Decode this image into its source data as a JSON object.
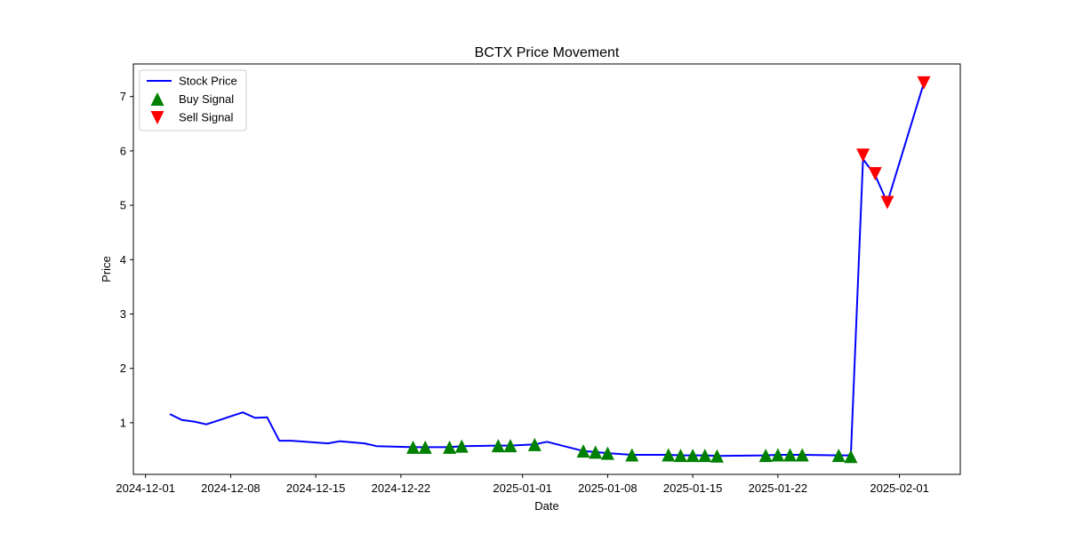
{
  "chart_data": {
    "type": "line",
    "title": "BCTX Price Movement",
    "xlabel": "Date",
    "ylabel": "Price",
    "ylim": [
      0.05,
      7.6
    ],
    "xlim": [
      "2024-11-30",
      "2025-02-06"
    ],
    "grid": false,
    "legend_position": "top-left",
    "x_ticks": [
      "2024-12-01",
      "2024-12-08",
      "2024-12-15",
      "2024-12-22",
      "2025-01-01",
      "2025-01-08",
      "2025-01-15",
      "2025-01-22",
      "2025-02-01"
    ],
    "y_ticks": [
      1,
      2,
      3,
      4,
      5,
      6,
      7
    ],
    "series": [
      {
        "name": "Stock Price",
        "color": "#0000ff",
        "points": [
          [
            "2024-12-03",
            1.16
          ],
          [
            "2024-12-04",
            1.05
          ],
          [
            "2024-12-05",
            1.02
          ],
          [
            "2024-12-06",
            0.97
          ],
          [
            "2024-12-09",
            1.19
          ],
          [
            "2024-12-10",
            1.09
          ],
          [
            "2024-12-11",
            1.1
          ],
          [
            "2024-12-12",
            0.67
          ],
          [
            "2024-12-13",
            0.67
          ],
          [
            "2024-12-16",
            0.62
          ],
          [
            "2024-12-17",
            0.66
          ],
          [
            "2024-12-19",
            0.62
          ],
          [
            "2024-12-20",
            0.57
          ],
          [
            "2024-12-23",
            0.55
          ],
          [
            "2024-12-24",
            0.55
          ],
          [
            "2024-12-26",
            0.55
          ],
          [
            "2024-12-27",
            0.57
          ],
          [
            "2024-12-30",
            0.58
          ],
          [
            "2024-12-31",
            0.58
          ],
          [
            "2025-01-02",
            0.6
          ],
          [
            "2025-01-03",
            0.65
          ],
          [
            "2025-01-06",
            0.48
          ],
          [
            "2025-01-07",
            0.46
          ],
          [
            "2025-01-08",
            0.44
          ],
          [
            "2025-01-10",
            0.41
          ],
          [
            "2025-01-13",
            0.41
          ],
          [
            "2025-01-14",
            0.4
          ],
          [
            "2025-01-15",
            0.4
          ],
          [
            "2025-01-16",
            0.4
          ],
          [
            "2025-01-17",
            0.39
          ],
          [
            "2025-01-21",
            0.4
          ],
          [
            "2025-01-22",
            0.41
          ],
          [
            "2025-01-23",
            0.41
          ],
          [
            "2025-01-24",
            0.41
          ],
          [
            "2025-01-27",
            0.4
          ],
          [
            "2025-01-28",
            0.4
          ],
          [
            "2025-01-29",
            5.85
          ],
          [
            "2025-01-30",
            5.55
          ],
          [
            "2025-01-31",
            5.05
          ],
          [
            "2025-02-03",
            7.25
          ]
        ]
      }
    ],
    "buy_signals": {
      "name": "Buy Signal",
      "color": "#008000",
      "points": [
        [
          "2024-12-23",
          0.55
        ],
        [
          "2024-12-24",
          0.55
        ],
        [
          "2024-12-26",
          0.55
        ],
        [
          "2024-12-27",
          0.57
        ],
        [
          "2024-12-30",
          0.58
        ],
        [
          "2024-12-31",
          0.58
        ],
        [
          "2025-01-02",
          0.6
        ],
        [
          "2025-01-06",
          0.48
        ],
        [
          "2025-01-07",
          0.46
        ],
        [
          "2025-01-08",
          0.44
        ],
        [
          "2025-01-10",
          0.41
        ],
        [
          "2025-01-13",
          0.41
        ],
        [
          "2025-01-14",
          0.4
        ],
        [
          "2025-01-15",
          0.4
        ],
        [
          "2025-01-16",
          0.4
        ],
        [
          "2025-01-17",
          0.39
        ],
        [
          "2025-01-21",
          0.4
        ],
        [
          "2025-01-22",
          0.41
        ],
        [
          "2025-01-23",
          0.41
        ],
        [
          "2025-01-24",
          0.41
        ],
        [
          "2025-01-27",
          0.4
        ],
        [
          "2025-01-28",
          0.38
        ]
      ]
    },
    "sell_signals": {
      "name": "Sell Signal",
      "color": "#ff0000",
      "points": [
        [
          "2025-01-29",
          5.92
        ],
        [
          "2025-01-30",
          5.58
        ],
        [
          "2025-01-31",
          5.05
        ],
        [
          "2025-02-03",
          7.25
        ]
      ]
    }
  }
}
